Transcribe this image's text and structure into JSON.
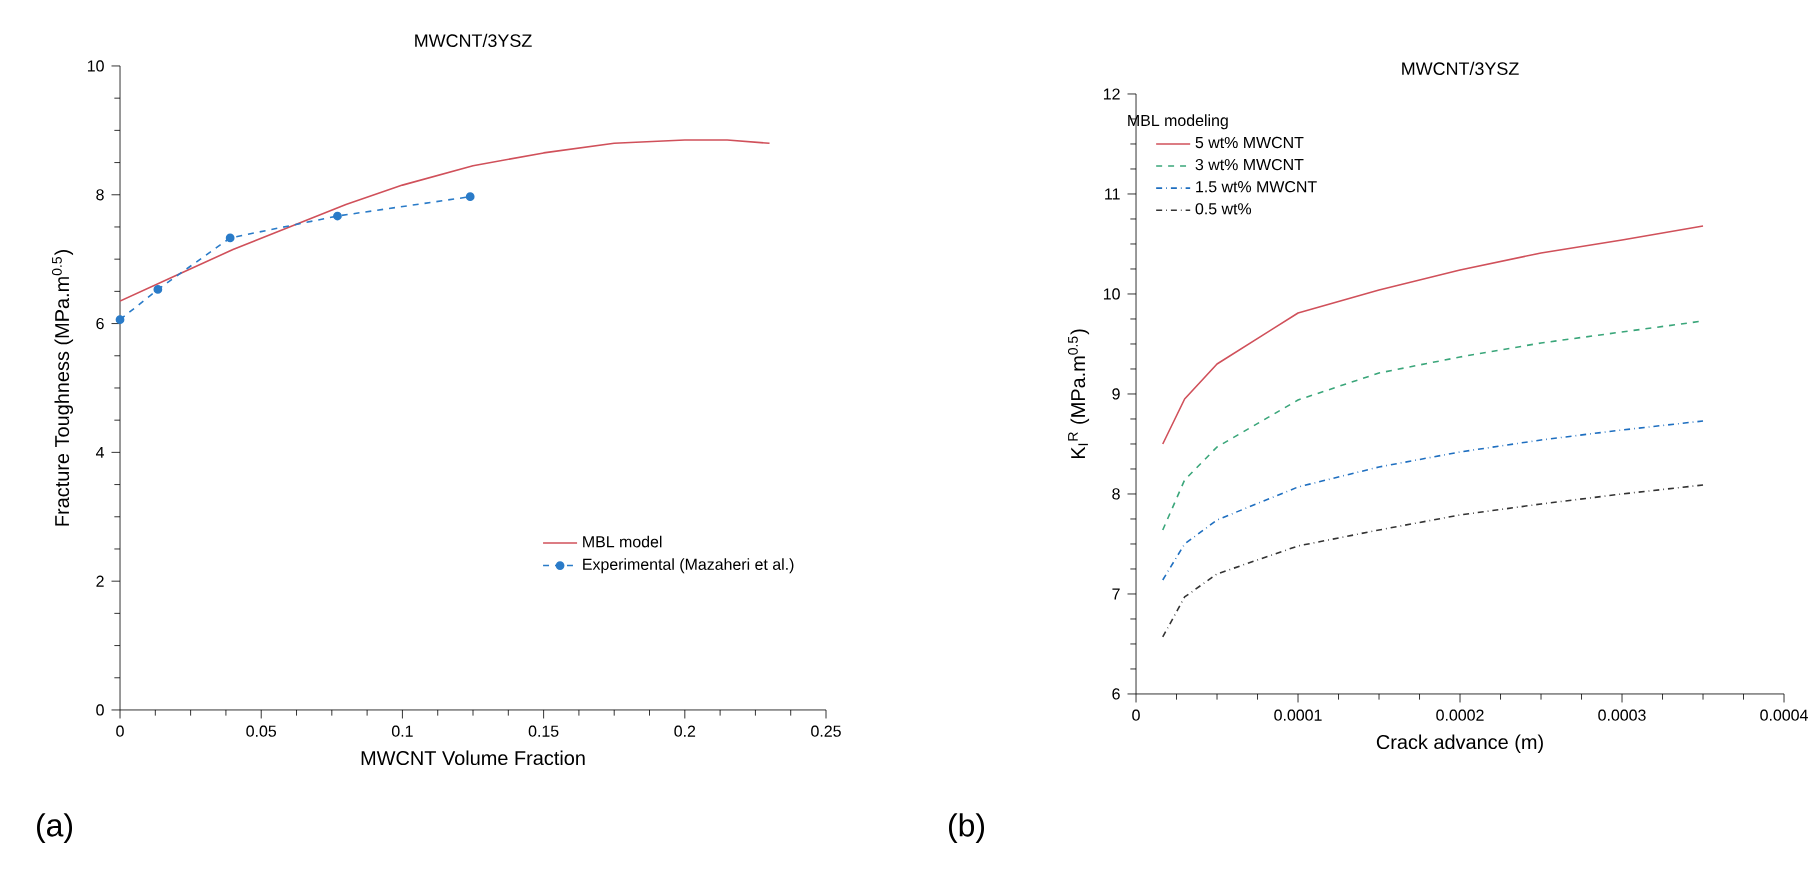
{
  "chart_data": [
    {
      "type": "line",
      "title": "MWCNT/3YSZ",
      "xlabel": "MWCNT Volume Fraction",
      "ylabel": "Fracture Toughness (MPa.m$^{0.5}$)",
      "xlim": [
        0,
        0.25
      ],
      "ylim": [
        0,
        10
      ],
      "xticks": [
        0,
        0.05,
        0.1,
        0.15,
        0.2,
        0.25
      ],
      "yticks": [
        0,
        2,
        4,
        6,
        8,
        10
      ],
      "legend": "bottom right",
      "annotations": [
        "(a)"
      ],
      "series": [
        {
          "name": "MBL model",
          "color": "#d0505a",
          "line_style": "solid",
          "marker": "none",
          "x": [
            0,
            0.02,
            0.04,
            0.06,
            0.08,
            0.1,
            0.125,
            0.15,
            0.175,
            0.2,
            0.215,
            0.23
          ],
          "values": [
            6.35,
            6.75,
            7.15,
            7.5,
            7.85,
            8.15,
            8.45,
            8.65,
            8.8,
            8.85,
            8.85,
            8.8
          ]
        },
        {
          "name": "Experimental (Mazaheri et al.)",
          "color": "#2a7bc8",
          "line_style": "dashed",
          "marker": "circle",
          "x": [
            0,
            0.0134,
            0.039,
            0.077,
            0.124
          ],
          "values": [
            6.06,
            6.53,
            7.33,
            7.67,
            7.97
          ]
        }
      ]
    },
    {
      "type": "line",
      "title": "MWCNT/3YSZ",
      "legend_title": "MBL modeling",
      "xlabel": "Crack advance (m)",
      "ylabel": "K$_{I}$$^{R}$ (MPa.m$^{0.5}$)",
      "xlim": [
        0,
        0.0004
      ],
      "ylim": [
        6,
        12
      ],
      "xticks": [
        0,
        0.0001,
        0.0002,
        0.0003,
        0.0004
      ],
      "yticks": [
        6,
        7,
        8,
        9,
        10,
        11,
        12
      ],
      "legend": "top left",
      "annotations": [
        "(b)"
      ],
      "series": [
        {
          "name": "5 wt% MWCNT",
          "color": "#d0505a",
          "line_style": "solid",
          "marker": "none",
          "x": [
            1.65e-05,
            3e-05,
            5e-05,
            0.0001,
            0.00015,
            0.0002,
            0.00025,
            0.0003,
            0.00035
          ],
          "values": [
            8.5,
            8.95,
            9.3,
            9.81,
            10.04,
            10.24,
            10.41,
            10.54,
            10.68
          ]
        },
        {
          "name": "3 wt% MWCNT",
          "color": "#3aa67a",
          "line_style": "dashed",
          "marker": "none",
          "x": [
            1.65e-05,
            3e-05,
            5e-05,
            0.0001,
            0.00015,
            0.0002,
            0.00025,
            0.0003,
            0.00035
          ],
          "values": [
            7.64,
            8.14,
            8.47,
            8.94,
            9.21,
            9.37,
            9.51,
            9.62,
            9.73
          ]
        },
        {
          "name": "1.5 wt% MWCNT",
          "color": "#1f6fc0",
          "line_style": "dashdot",
          "marker": "none",
          "x": [
            1.65e-05,
            3e-05,
            5e-05,
            0.0001,
            0.00015,
            0.0002,
            0.00025,
            0.0003,
            0.00035
          ],
          "values": [
            7.14,
            7.5,
            7.74,
            8.07,
            8.27,
            8.42,
            8.54,
            8.64,
            8.73
          ]
        },
        {
          "name": "0.5 wt%",
          "color": "#333333",
          "line_style": "dashdot",
          "marker": "none",
          "x": [
            1.65e-05,
            3e-05,
            5e-05,
            0.0001,
            0.00015,
            0.0002,
            0.00025,
            0.0003,
            0.00035
          ],
          "values": [
            6.57,
            6.97,
            7.2,
            7.48,
            7.64,
            7.79,
            7.9,
            8.0,
            8.09
          ]
        }
      ]
    }
  ]
}
